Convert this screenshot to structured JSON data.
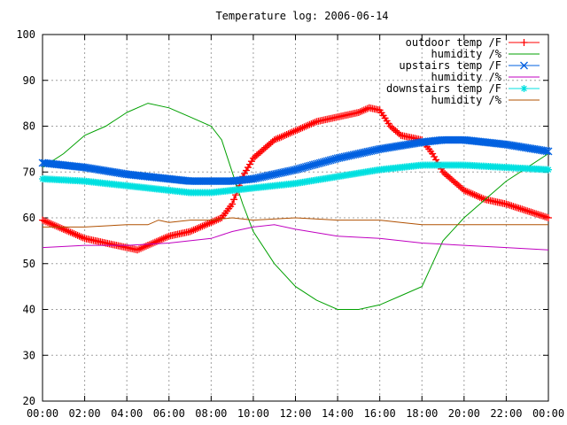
{
  "chart_data": {
    "type": "line",
    "title": "Temperature log: 2006-06-14",
    "xlabel": "",
    "ylabel": "",
    "xlim": [
      0,
      24
    ],
    "ylim": [
      20,
      100
    ],
    "grid": true,
    "legend_position": "top-right",
    "x_tick_labels": [
      "00:00",
      "02:00",
      "04:00",
      "06:00",
      "08:00",
      "10:00",
      "12:00",
      "14:00",
      "16:00",
      "18:00",
      "20:00",
      "22:00",
      "00:00"
    ],
    "y_tick_labels": [
      "20",
      "30",
      "40",
      "50",
      "60",
      "70",
      "80",
      "90",
      "100"
    ],
    "series": [
      {
        "name": "outdoor temp /F",
        "color": "#ff0000",
        "marker": "plus",
        "x": [
          0,
          1,
          2,
          3,
          4,
          4.5,
          5,
          6,
          7,
          8,
          8.5,
          9,
          9.5,
          10,
          10.5,
          11,
          12,
          13,
          14,
          15,
          15.5,
          16,
          16.5,
          17,
          18,
          18.5,
          19,
          20,
          21,
          22,
          23,
          24
        ],
        "y": [
          59.5,
          57.5,
          55.5,
          54.5,
          53.5,
          53,
          54,
          56,
          57,
          59,
          60,
          63,
          69,
          73,
          75,
          77,
          79,
          81,
          82,
          83,
          84,
          83.5,
          80,
          78,
          77,
          74,
          70,
          66,
          64,
          63,
          61.5,
          60
        ]
      },
      {
        "name": "humidity /%",
        "color": "#00a000",
        "marker": "none",
        "x": [
          0,
          1,
          2,
          3,
          4,
          5,
          6,
          7,
          8,
          8.5,
          9,
          9.5,
          10,
          11,
          12,
          13,
          14,
          15,
          16,
          17,
          18,
          18.5,
          19,
          20,
          21,
          22,
          23,
          24
        ],
        "y": [
          71,
          74,
          78,
          80,
          83,
          85,
          84,
          82,
          80,
          77,
          70,
          63,
          57,
          50,
          45,
          42,
          40,
          40,
          41,
          43,
          45,
          50,
          55,
          60,
          64,
          68,
          71,
          74
        ]
      },
      {
        "name": "upstairs temp /F",
        "color": "#0060e0",
        "marker": "x",
        "x": [
          0,
          2,
          4,
          6,
          7,
          8,
          9,
          10,
          12,
          14,
          16,
          18,
          19,
          20,
          22,
          24
        ],
        "y": [
          72,
          71,
          69.5,
          68.5,
          68,
          68,
          68,
          68.5,
          70.5,
          73,
          75,
          76.5,
          77,
          77,
          76,
          74.5
        ]
      },
      {
        "name": "humidity /%",
        "color": "#c000c0",
        "marker": "none",
        "x": [
          0,
          2,
          4,
          6,
          8,
          9,
          10,
          11,
          12,
          14,
          16,
          18,
          20,
          22,
          24
        ],
        "y": [
          53.5,
          54,
          54,
          54.5,
          55.5,
          57,
          58,
          58.5,
          57.5,
          56,
          55.5,
          54.5,
          54,
          53.5,
          53
        ]
      },
      {
        "name": "downstairs temp /F",
        "color": "#00e0e0",
        "marker": "star",
        "x": [
          0,
          2,
          4,
          6,
          7,
          8,
          9,
          10,
          12,
          14,
          16,
          18,
          19,
          20,
          22,
          24
        ],
        "y": [
          68.5,
          68,
          67,
          66,
          65.5,
          65.5,
          66,
          66.5,
          67.5,
          69,
          70.5,
          71.5,
          71.5,
          71.5,
          71,
          70.5
        ]
      },
      {
        "name": "humidity /%",
        "color": "#b05000",
        "marker": "none",
        "x": [
          0,
          2,
          4,
          5,
          5.5,
          6,
          7,
          8,
          9,
          10,
          12,
          14,
          16,
          17,
          18,
          20,
          22,
          24
        ],
        "y": [
          58,
          58,
          58.5,
          58.5,
          59.5,
          59,
          59.5,
          59.5,
          60,
          59.5,
          60,
          59.5,
          59.5,
          59,
          58.5,
          58.5,
          58.5,
          58.5
        ]
      }
    ]
  }
}
